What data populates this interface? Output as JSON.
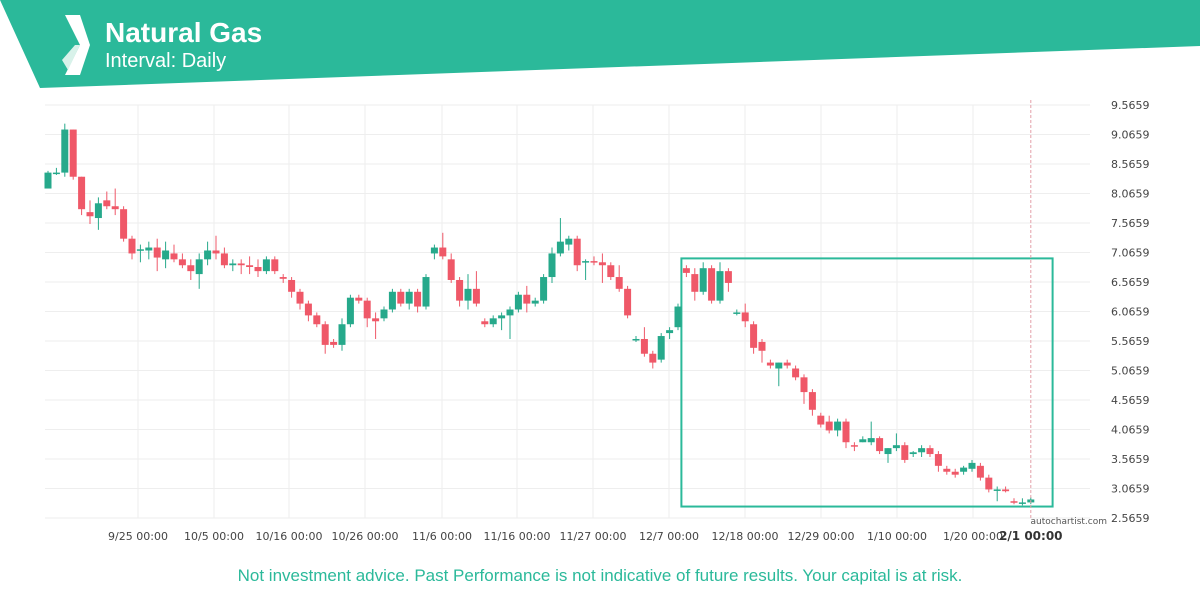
{
  "header": {
    "title": "Natural Gas",
    "subtitle": "Interval: Daily",
    "brand_color": "#2bb99a",
    "logo_icon": "autochartist-logo-icon"
  },
  "watermark": "autochartist.com",
  "disclaimer": "Not investment advice. Past Performance is not indicative of future results. Your capital is at risk.",
  "colors": {
    "up": "#26a98b",
    "down": "#ef5868",
    "pattern_box": "#2bb99a",
    "grid": "#eeeeee",
    "disclaimer": "#2bb99a",
    "current_line": "#e3a0a8"
  },
  "chart_data": {
    "type": "candlestick",
    "title": "Natural Gas",
    "subtitle": "Interval: Daily",
    "y_ticks": [
      "9.5659",
      "9.0659",
      "8.5659",
      "8.0659",
      "7.5659",
      "7.0659",
      "6.5659",
      "6.0659",
      "5.5659",
      "5.0659",
      "4.5659",
      "4.0659",
      "3.5659",
      "3.0659",
      "2.5659"
    ],
    "ylim": [
      2.5659,
      9.5659
    ],
    "x_ticks": [
      "9/25 00:00",
      "10/5 00:00",
      "10/16 00:00",
      "10/26 00:00",
      "11/6 00:00",
      "11/16 00:00",
      "11/27 00:00",
      "12/7 00:00",
      "12/18 00:00",
      "12/29 00:00",
      "1/10 00:00",
      "1/20 00:00"
    ],
    "current_time_label": "2/1 00:00",
    "grid": true,
    "y_axis_side": "right",
    "candles": [
      {
        "o": 8.15,
        "h": 8.45,
        "l": 8.15,
        "c": 8.42
      },
      {
        "o": 8.4,
        "h": 8.5,
        "l": 8.38,
        "c": 8.42
      },
      {
        "o": 8.42,
        "h": 9.25,
        "l": 8.35,
        "c": 9.15
      },
      {
        "o": 9.15,
        "h": 9.15,
        "l": 8.3,
        "c": 8.35
      },
      {
        "o": 8.35,
        "h": 8.35,
        "l": 7.7,
        "c": 7.8
      },
      {
        "o": 7.75,
        "h": 7.95,
        "l": 7.55,
        "c": 7.68
      },
      {
        "o": 7.65,
        "h": 8.0,
        "l": 7.45,
        "c": 7.9
      },
      {
        "o": 7.95,
        "h": 8.1,
        "l": 7.8,
        "c": 7.85
      },
      {
        "o": 7.85,
        "h": 8.15,
        "l": 7.7,
        "c": 7.8
      },
      {
        "o": 7.8,
        "h": 7.85,
        "l": 7.25,
        "c": 7.3
      },
      {
        "o": 7.3,
        "h": 7.35,
        "l": 6.95,
        "c": 7.05
      },
      {
        "o": 7.1,
        "h": 7.2,
        "l": 6.9,
        "c": 7.12
      },
      {
        "o": 7.1,
        "h": 7.25,
        "l": 6.95,
        "c": 7.15
      },
      {
        "o": 7.15,
        "h": 7.3,
        "l": 6.75,
        "c": 6.98
      },
      {
        "o": 6.95,
        "h": 7.25,
        "l": 6.8,
        "c": 7.1
      },
      {
        "o": 7.05,
        "h": 7.2,
        "l": 6.9,
        "c": 6.95
      },
      {
        "o": 6.95,
        "h": 7.05,
        "l": 6.8,
        "c": 6.85
      },
      {
        "o": 6.85,
        "h": 6.95,
        "l": 6.6,
        "c": 6.75
      },
      {
        "o": 6.7,
        "h": 7.05,
        "l": 6.45,
        "c": 6.95
      },
      {
        "o": 6.95,
        "h": 7.25,
        "l": 6.85,
        "c": 7.1
      },
      {
        "o": 7.1,
        "h": 7.35,
        "l": 6.95,
        "c": 7.05
      },
      {
        "o": 7.05,
        "h": 7.15,
        "l": 6.8,
        "c": 6.85
      },
      {
        "o": 6.85,
        "h": 6.95,
        "l": 6.75,
        "c": 6.88
      },
      {
        "o": 6.88,
        "h": 6.95,
        "l": 6.7,
        "c": 6.85
      },
      {
        "o": 6.85,
        "h": 7.0,
        "l": 6.7,
        "c": 6.82
      },
      {
        "o": 6.82,
        "h": 6.95,
        "l": 6.65,
        "c": 6.75
      },
      {
        "o": 6.75,
        "h": 7.0,
        "l": 6.7,
        "c": 6.95
      },
      {
        "o": 6.95,
        "h": 7.0,
        "l": 6.7,
        "c": 6.75
      },
      {
        "o": 6.65,
        "h": 6.7,
        "l": 6.55,
        "c": 6.62
      },
      {
        "o": 6.6,
        "h": 6.65,
        "l": 6.3,
        "c": 6.4
      },
      {
        "o": 6.4,
        "h": 6.45,
        "l": 6.1,
        "c": 6.2
      },
      {
        "o": 6.2,
        "h": 6.25,
        "l": 5.9,
        "c": 6.0
      },
      {
        "o": 6.0,
        "h": 6.05,
        "l": 5.8,
        "c": 5.85
      },
      {
        "o": 5.85,
        "h": 5.9,
        "l": 5.35,
        "c": 5.5
      },
      {
        "o": 5.55,
        "h": 5.6,
        "l": 5.45,
        "c": 5.5
      },
      {
        "o": 5.5,
        "h": 5.95,
        "l": 5.4,
        "c": 5.85
      },
      {
        "o": 5.85,
        "h": 6.35,
        "l": 5.8,
        "c": 6.3
      },
      {
        "o": 6.3,
        "h": 6.35,
        "l": 6.2,
        "c": 6.25
      },
      {
        "o": 6.25,
        "h": 6.3,
        "l": 5.8,
        "c": 5.95
      },
      {
        "o": 5.95,
        "h": 6.05,
        "l": 5.6,
        "c": 5.9
      },
      {
        "o": 5.95,
        "h": 6.15,
        "l": 5.9,
        "c": 6.1
      },
      {
        "o": 6.1,
        "h": 6.45,
        "l": 6.05,
        "c": 6.4
      },
      {
        "o": 6.4,
        "h": 6.45,
        "l": 6.15,
        "c": 6.2
      },
      {
        "o": 6.2,
        "h": 6.45,
        "l": 6.1,
        "c": 6.4
      },
      {
        "o": 6.4,
        "h": 6.45,
        "l": 6.05,
        "c": 6.15
      },
      {
        "o": 6.15,
        "h": 6.7,
        "l": 6.1,
        "c": 6.65
      },
      {
        "o": 7.05,
        "h": 7.2,
        "l": 6.95,
        "c": 7.15
      },
      {
        "o": 7.15,
        "h": 7.4,
        "l": 6.95,
        "c": 7.0
      },
      {
        "o": 6.95,
        "h": 7.05,
        "l": 6.55,
        "c": 6.6
      },
      {
        "o": 6.6,
        "h": 6.65,
        "l": 6.15,
        "c": 6.25
      },
      {
        "o": 6.25,
        "h": 6.7,
        "l": 6.1,
        "c": 6.45
      },
      {
        "o": 6.45,
        "h": 6.75,
        "l": 6.15,
        "c": 6.2
      },
      {
        "o": 5.9,
        "h": 5.95,
        "l": 5.8,
        "c": 5.85
      },
      {
        "o": 5.85,
        "h": 6.0,
        "l": 5.8,
        "c": 5.95
      },
      {
        "o": 5.95,
        "h": 6.05,
        "l": 5.75,
        "c": 6.0
      },
      {
        "o": 6.0,
        "h": 6.15,
        "l": 5.6,
        "c": 6.1
      },
      {
        "o": 6.1,
        "h": 6.4,
        "l": 6.05,
        "c": 6.35
      },
      {
        "o": 6.35,
        "h": 6.5,
        "l": 6.05,
        "c": 6.2
      },
      {
        "o": 6.2,
        "h": 6.3,
        "l": 6.15,
        "c": 6.25
      },
      {
        "o": 6.25,
        "h": 6.7,
        "l": 6.2,
        "c": 6.65
      },
      {
        "o": 6.65,
        "h": 7.15,
        "l": 6.55,
        "c": 7.05
      },
      {
        "o": 7.05,
        "h": 7.65,
        "l": 7.0,
        "c": 7.25
      },
      {
        "o": 7.2,
        "h": 7.35,
        "l": 7.1,
        "c": 7.3
      },
      {
        "o": 7.3,
        "h": 7.35,
        "l": 6.75,
        "c": 6.85
      },
      {
        "o": 6.9,
        "h": 6.95,
        "l": 6.6,
        "c": 6.92
      },
      {
        "o": 6.92,
        "h": 7.0,
        "l": 6.85,
        "c": 6.9
      },
      {
        "o": 6.9,
        "h": 7.05,
        "l": 6.55,
        "c": 6.85
      },
      {
        "o": 6.85,
        "h": 6.9,
        "l": 6.6,
        "c": 6.65
      },
      {
        "o": 6.65,
        "h": 6.85,
        "l": 6.4,
        "c": 6.45
      },
      {
        "o": 6.45,
        "h": 6.5,
        "l": 5.95,
        "c": 6.0
      },
      {
        "o": 5.6,
        "h": 5.65,
        "l": 5.55,
        "c": 5.6
      },
      {
        "o": 5.6,
        "h": 5.8,
        "l": 5.3,
        "c": 5.35
      },
      {
        "o": 5.35,
        "h": 5.4,
        "l": 5.1,
        "c": 5.2
      },
      {
        "o": 5.25,
        "h": 5.7,
        "l": 5.2,
        "c": 5.65
      },
      {
        "o": 5.7,
        "h": 5.8,
        "l": 5.6,
        "c": 5.75
      },
      {
        "o": 5.8,
        "h": 6.2,
        "l": 5.75,
        "c": 6.15
      },
      {
        "o": 6.8,
        "h": 6.85,
        "l": 6.65,
        "c": 6.72
      },
      {
        "o": 6.7,
        "h": 6.8,
        "l": 6.25,
        "c": 6.4
      },
      {
        "o": 6.4,
        "h": 6.9,
        "l": 6.35,
        "c": 6.8
      },
      {
        "o": 6.8,
        "h": 6.85,
        "l": 6.2,
        "c": 6.25
      },
      {
        "o": 6.25,
        "h": 6.9,
        "l": 6.2,
        "c": 6.75
      },
      {
        "o": 6.75,
        "h": 6.8,
        "l": 6.4,
        "c": 6.55
      },
      {
        "o": 6.05,
        "h": 6.1,
        "l": 6.0,
        "c": 6.05
      },
      {
        "o": 6.05,
        "h": 6.2,
        "l": 5.8,
        "c": 5.9
      },
      {
        "o": 5.85,
        "h": 5.9,
        "l": 5.35,
        "c": 5.45
      },
      {
        "o": 5.55,
        "h": 5.6,
        "l": 5.2,
        "c": 5.4
      },
      {
        "o": 5.2,
        "h": 5.25,
        "l": 5.1,
        "c": 5.15
      },
      {
        "o": 5.1,
        "h": 5.2,
        "l": 4.8,
        "c": 5.2
      },
      {
        "o": 5.2,
        "h": 5.25,
        "l": 5.1,
        "c": 5.15
      },
      {
        "o": 5.1,
        "h": 5.15,
        "l": 4.9,
        "c": 4.95
      },
      {
        "o": 4.95,
        "h": 5.0,
        "l": 4.5,
        "c": 4.7
      },
      {
        "o": 4.7,
        "h": 4.75,
        "l": 4.3,
        "c": 4.4
      },
      {
        "o": 4.3,
        "h": 4.35,
        "l": 4.1,
        "c": 4.15
      },
      {
        "o": 4.2,
        "h": 4.3,
        "l": 4.0,
        "c": 4.05
      },
      {
        "o": 4.05,
        "h": 4.25,
        "l": 3.95,
        "c": 4.2
      },
      {
        "o": 4.2,
        "h": 4.25,
        "l": 3.75,
        "c": 3.85
      },
      {
        "o": 3.8,
        "h": 3.85,
        "l": 3.7,
        "c": 3.78
      },
      {
        "o": 3.85,
        "h": 3.95,
        "l": 3.85,
        "c": 3.9
      },
      {
        "o": 3.85,
        "h": 4.2,
        "l": 3.8,
        "c": 3.92
      },
      {
        "o": 3.92,
        "h": 3.95,
        "l": 3.65,
        "c": 3.7
      },
      {
        "o": 3.65,
        "h": 3.75,
        "l": 3.5,
        "c": 3.75
      },
      {
        "o": 3.75,
        "h": 4.0,
        "l": 3.7,
        "c": 3.8
      },
      {
        "o": 3.8,
        "h": 3.85,
        "l": 3.5,
        "c": 3.55
      },
      {
        "o": 3.65,
        "h": 3.7,
        "l": 3.6,
        "c": 3.68
      },
      {
        "o": 3.68,
        "h": 3.8,
        "l": 3.6,
        "c": 3.75
      },
      {
        "o": 3.75,
        "h": 3.8,
        "l": 3.6,
        "c": 3.65
      },
      {
        "o": 3.65,
        "h": 3.7,
        "l": 3.35,
        "c": 3.45
      },
      {
        "o": 3.4,
        "h": 3.45,
        "l": 3.3,
        "c": 3.35
      },
      {
        "o": 3.35,
        "h": 3.4,
        "l": 3.25,
        "c": 3.3
      },
      {
        "o": 3.35,
        "h": 3.45,
        "l": 3.3,
        "c": 3.42
      },
      {
        "o": 3.4,
        "h": 3.55,
        "l": 3.35,
        "c": 3.5
      },
      {
        "o": 3.45,
        "h": 3.5,
        "l": 3.2,
        "c": 3.25
      },
      {
        "o": 3.25,
        "h": 3.3,
        "l": 3.0,
        "c": 3.05
      },
      {
        "o": 3.05,
        "h": 3.1,
        "l": 2.85,
        "c": 3.05
      },
      {
        "o": 3.05,
        "h": 3.1,
        "l": 3.0,
        "c": 3.02
      },
      {
        "o": 2.85,
        "h": 2.9,
        "l": 2.8,
        "c": 2.83
      },
      {
        "o": 2.83,
        "h": 2.9,
        "l": 2.78,
        "c": 2.83
      },
      {
        "o": 2.83,
        "h": 2.92,
        "l": 2.8,
        "c": 2.88
      }
    ],
    "pattern_box": {
      "from_candle": 76,
      "to_candle": 119,
      "high": 6.9659,
      "low": 2.76
    }
  }
}
